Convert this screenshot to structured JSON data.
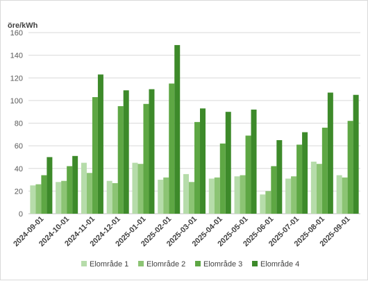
{
  "chart_data": {
    "type": "bar",
    "ylabel": "öre/kWh",
    "ylim": [
      0,
      160
    ],
    "yticks": [
      0,
      20,
      40,
      60,
      80,
      100,
      120,
      140,
      160
    ],
    "grid": true,
    "legend_position": "bottom",
    "categories": [
      "2024-09-01",
      "2024-10-01",
      "2024-11-01",
      "2024-12-01",
      "2025-01-01",
      "2025-02-01",
      "2025-03-01",
      "2025-04-01",
      "2025-05-01",
      "2025-06-01",
      "2025-07-01",
      "2025-08-01",
      "2025-09-01"
    ],
    "series": [
      {
        "name": "Elområde 1",
        "color": "#b6dcaa",
        "values": [
          25,
          28,
          45,
          29,
          45,
          30,
          35,
          31,
          33,
          17,
          31,
          46,
          34
        ]
      },
      {
        "name": "Elområde 2",
        "color": "#8cc474",
        "values": [
          26,
          29,
          36,
          27,
          44,
          32,
          28,
          32,
          34,
          20,
          33,
          44,
          32
        ]
      },
      {
        "name": "Elområde 3",
        "color": "#5ea744",
        "values": [
          34,
          42,
          103,
          95,
          97,
          115,
          81,
          62,
          69,
          42,
          61,
          76,
          82
        ]
      },
      {
        "name": "Elområde 4",
        "color": "#3d8a2a",
        "values": [
          50,
          51,
          123,
          109,
          110,
          149,
          93,
          90,
          92,
          65,
          72,
          107,
          105
        ]
      }
    ]
  }
}
